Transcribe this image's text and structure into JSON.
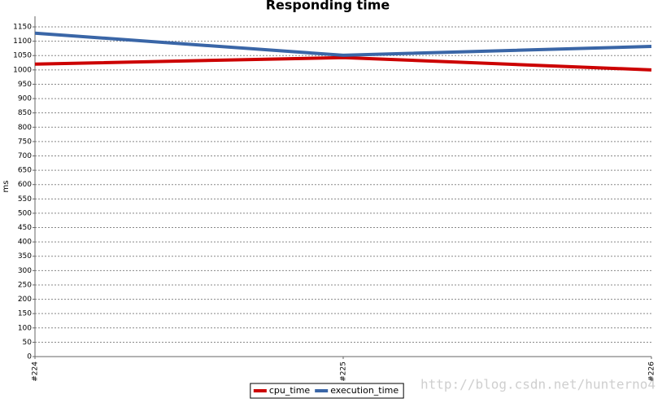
{
  "chart_data": {
    "type": "line",
    "title": "Responding time",
    "y_label": "ms",
    "categories": [
      "#224",
      "#225",
      "#226"
    ],
    "series": [
      {
        "name": "cpu_time",
        "color": "#cc0000",
        "values": [
          1020,
          1043,
          1000
        ]
      },
      {
        "name": "execution_time",
        "color": "#3a66a7",
        "values": [
          1128,
          1051,
          1082
        ]
      }
    ],
    "ylim": [
      0,
      1187
    ],
    "yticks": [
      0,
      50,
      100,
      150,
      200,
      250,
      300,
      350,
      400,
      450,
      500,
      550,
      600,
      650,
      700,
      750,
      800,
      850,
      900,
      950,
      1000,
      1050,
      1100,
      1150
    ],
    "grid": true,
    "legend": "bottom",
    "watermark": "http://blog.csdn.net/hunterno4"
  }
}
